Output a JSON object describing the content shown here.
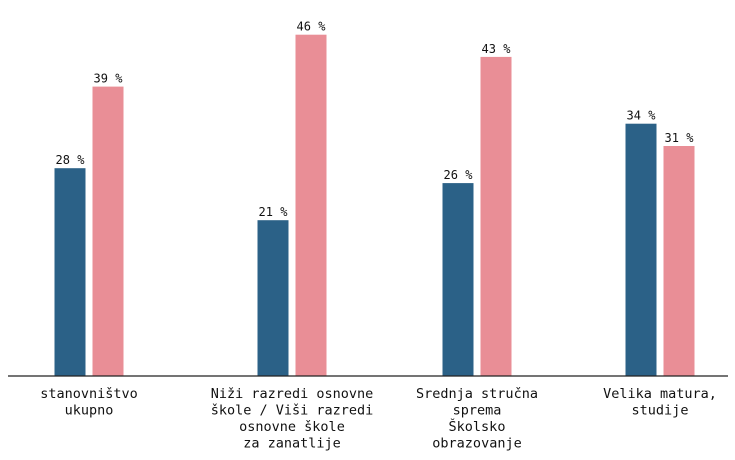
{
  "colors": {
    "series1": "#2b6187",
    "series2": "#e98e96",
    "axis": "#222222",
    "text": "#111111"
  },
  "chart_data": {
    "type": "bar",
    "title": "",
    "xlabel": "",
    "ylabel": "",
    "ylim": [
      0,
      50
    ],
    "value_suffix": "%",
    "categories": [
      [
        "stanovništvo",
        "ukupno"
      ],
      [
        "Niži razredi osnovne",
        "škole / Viši razredi",
        "osnovne škole",
        "za zanatlije"
      ],
      [
        "Srednja stručna",
        "sprema",
        "Školsko",
        "obrazovanje"
      ],
      [
        "Velika matura,",
        "studije"
      ]
    ],
    "series": [
      {
        "values": [
          28,
          21,
          26,
          34
        ]
      },
      {
        "values": [
          39,
          46,
          43,
          31
        ]
      }
    ],
    "value_labels": [
      [
        "28 %",
        "21 %",
        "26 %",
        "34 %"
      ],
      [
        "39 %",
        "46 %",
        "43 %",
        "31 %"
      ]
    ],
    "legend": "none",
    "grid": false
  }
}
